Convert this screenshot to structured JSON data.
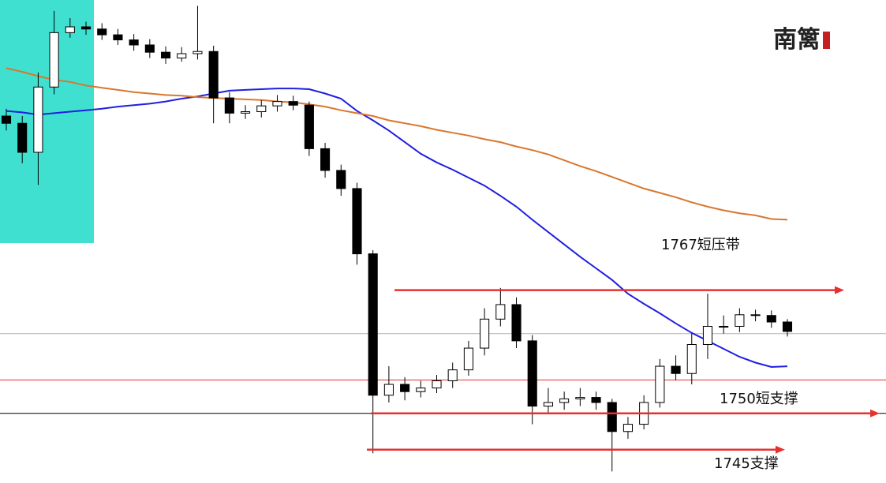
{
  "chart_data": {
    "type": "candlestick",
    "logo": "南篱",
    "ylim": [
      1740.4,
      1807
    ],
    "open": [
      1791.0,
      1790.0,
      1786.0,
      1795.0,
      1802.5,
      1803.3,
      1803.0,
      1802.2,
      1801.5,
      1800.8,
      1799.8,
      1799.0,
      1799.6,
      1799.9,
      1793.5,
      1791.4,
      1791.6,
      1792.4,
      1793.0,
      1792.5,
      1786.5,
      1783.5,
      1781.0,
      1772.0,
      1752.5,
      1754.0,
      1753.0,
      1753.5,
      1754.5,
      1756.0,
      1759.0,
      1763.0,
      1765.0,
      1760.0,
      1751.0,
      1751.5,
      1752.0,
      1752.2,
      1751.5,
      1747.5,
      1748.5,
      1751.5,
      1756.5,
      1755.5,
      1759.5,
      1762.0,
      1762.0,
      1763.6,
      1763.5,
      1762.6
    ],
    "high": [
      1792.0,
      1791.0,
      1797.0,
      1805.5,
      1804.5,
      1804.0,
      1803.8,
      1803.0,
      1802.3,
      1801.6,
      1800.6,
      1800.5,
      1806.2,
      1800.7,
      1794.3,
      1792.5,
      1793.2,
      1793.9,
      1793.8,
      1793.0,
      1787.3,
      1784.3,
      1781.8,
      1772.5,
      1756.5,
      1755.0,
      1754.5,
      1755.3,
      1757.0,
      1760.0,
      1764.5,
      1767.3,
      1766.0,
      1760.8,
      1753.5,
      1753.0,
      1753.5,
      1753.0,
      1752.0,
      1749.5,
      1752.5,
      1757.5,
      1758.0,
      1761.0,
      1766.5,
      1763.5,
      1764.5,
      1764.3,
      1764.2,
      1763.0
    ],
    "low": [
      1789.0,
      1784.5,
      1781.5,
      1794.0,
      1801.8,
      1802.2,
      1801.5,
      1800.8,
      1800.0,
      1799.0,
      1798.2,
      1798.5,
      1798.8,
      1790.0,
      1790.0,
      1790.6,
      1790.8,
      1791.6,
      1791.8,
      1785.5,
      1782.5,
      1780.0,
      1770.5,
      1744.5,
      1751.5,
      1751.8,
      1752.2,
      1752.8,
      1753.5,
      1755.2,
      1758.0,
      1762.0,
      1759.0,
      1748.5,
      1750.0,
      1750.5,
      1751.0,
      1750.5,
      1742.0,
      1746.5,
      1747.8,
      1750.8,
      1754.6,
      1754.0,
      1757.5,
      1761.0,
      1761.2,
      1762.7,
      1761.8,
      1760.6
    ],
    "close": [
      1790.0,
      1786.0,
      1795.0,
      1802.5,
      1803.3,
      1803.0,
      1802.2,
      1801.5,
      1800.8,
      1799.8,
      1799.0,
      1799.6,
      1799.9,
      1793.5,
      1791.4,
      1791.6,
      1792.4,
      1793.0,
      1792.5,
      1786.5,
      1783.5,
      1781.0,
      1772.0,
      1752.5,
      1754.0,
      1753.0,
      1753.5,
      1754.5,
      1756.0,
      1759.0,
      1763.0,
      1765.0,
      1760.0,
      1751.0,
      1751.5,
      1752.0,
      1752.2,
      1751.5,
      1747.5,
      1748.5,
      1751.5,
      1756.5,
      1755.5,
      1759.5,
      1762.0,
      1762.0,
      1763.6,
      1763.5,
      1762.6,
      1761.3
    ],
    "series": [
      {
        "color": "#1f1fe0",
        "values": [
          1791.7,
          1791.5,
          1791.2,
          1791.4,
          1791.6,
          1791.8,
          1792.0,
          1792.3,
          1792.5,
          1792.7,
          1793.0,
          1793.4,
          1793.7,
          1794.1,
          1794.5,
          1794.6,
          1794.7,
          1794.8,
          1794.8,
          1794.7,
          1794.1,
          1793.4,
          1791.7,
          1790.4,
          1789.0,
          1787.4,
          1785.8,
          1784.6,
          1783.6,
          1782.5,
          1781.4,
          1780.0,
          1778.5,
          1776.7,
          1775.0,
          1773.3,
          1771.6,
          1770.0,
          1768.4,
          1766.5,
          1765.1,
          1763.8,
          1762.4,
          1761.1,
          1760.0,
          1758.9,
          1757.8,
          1757.0,
          1756.4,
          1756.5
        ]
      },
      {
        "color": "#d9772e",
        "values": [
          1797.6,
          1797.1,
          1796.5,
          1796.0,
          1795.7,
          1795.2,
          1794.9,
          1794.6,
          1794.3,
          1794.1,
          1793.9,
          1793.8,
          1793.6,
          1793.5,
          1793.4,
          1793.3,
          1793.2,
          1793.0,
          1792.9,
          1792.6,
          1792.3,
          1791.8,
          1791.4,
          1791.0,
          1790.4,
          1790.0,
          1789.6,
          1789.1,
          1788.7,
          1788.3,
          1787.8,
          1787.4,
          1786.8,
          1786.3,
          1785.7,
          1784.9,
          1784.1,
          1783.4,
          1782.6,
          1781.8,
          1781.0,
          1780.4,
          1779.8,
          1779.1,
          1778.5,
          1778.0,
          1777.6,
          1777.3,
          1776.8,
          1776.7
        ]
      }
    ],
    "lines": [
      {
        "value": 1761,
        "color": "#b0b0b0"
      },
      {
        "value": 1754.6,
        "color": "#e03030"
      },
      {
        "value": 1750,
        "color": "#000000"
      }
    ],
    "annotations": [
      {
        "text": "1767短压带",
        "value": 1767,
        "color": "#e83030"
      },
      {
        "text": "1750短支撑",
        "value": 1750,
        "color": "#e83030"
      },
      {
        "text": "1745支撑",
        "value": 1745,
        "color": "#e83030"
      }
    ]
  }
}
